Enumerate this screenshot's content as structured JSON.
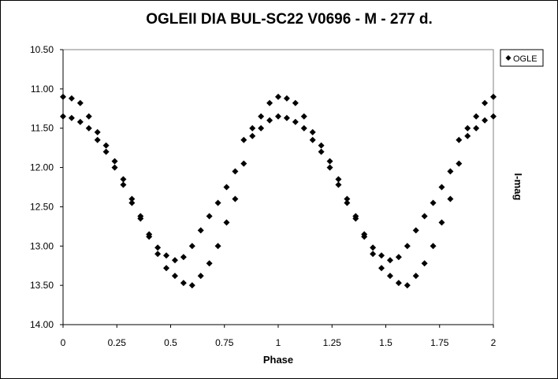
{
  "chart_data": {
    "type": "scatter",
    "title": "OGLEII DIA BUL-SC22 V0696 - M - 277 d.",
    "xlabel": "Phase",
    "ylabel": "I-mag",
    "xlim": [
      0,
      2
    ],
    "ylim": [
      10.5,
      14.0
    ],
    "y_inverted": true,
    "grid": false,
    "legend": "right",
    "xticks": [
      "0",
      "0.25",
      "0.5",
      "0.75",
      "1",
      "1.25",
      "1.5",
      "1.75",
      "2"
    ],
    "yticks": [
      "10.50",
      "11.00",
      "11.50",
      "12.00",
      "12.50",
      "13.00",
      "13.50",
      "14.00"
    ],
    "marker_color": "#000000",
    "series": [
      {
        "name": "OGLE",
        "x": [
          0,
          0.04,
          0.08,
          0.12,
          0.16,
          0.2,
          0.24,
          0.28,
          0.32,
          0.36,
          0.4,
          0.44,
          0.48,
          0.52,
          0.56,
          0.6,
          0.64,
          0.68,
          0.72,
          0.76,
          0.8,
          0.84,
          0.88,
          0.92,
          0.96,
          0,
          0.04,
          0.08,
          0.12,
          0.16,
          0.2,
          0.24,
          0.28,
          0.32,
          0.36,
          0.4,
          0.44,
          0.48,
          0.52,
          0.56,
          0.6,
          0.64,
          0.68,
          0.72,
          0.76,
          0.8,
          0.84,
          0.88,
          0.92,
          0.96,
          1,
          1.04,
          1.08,
          1.12,
          1.16,
          1.2,
          1.24,
          1.28,
          1.32,
          1.36,
          1.4,
          1.44,
          1.48,
          1.52,
          1.56,
          1.6,
          1.64,
          1.68,
          1.72,
          1.76,
          1.8,
          1.84,
          1.88,
          1.92,
          1.96,
          2,
          1,
          1.04,
          1.08,
          1.12,
          1.16,
          1.2,
          1.24,
          1.28,
          1.32,
          1.36,
          1.4,
          1.44,
          1.48,
          1.52,
          1.56,
          1.6,
          1.64,
          1.68,
          1.72,
          1.76,
          1.8,
          1.84,
          1.88,
          1.92,
          1.96,
          2
        ],
        "y": [
          11.1,
          11.12,
          11.18,
          11.35,
          11.55,
          11.72,
          11.92,
          12.15,
          12.4,
          12.62,
          12.85,
          13.02,
          13.12,
          13.18,
          13.14,
          13.0,
          12.8,
          12.62,
          12.45,
          12.25,
          12.05,
          11.65,
          11.5,
          11.35,
          11.18,
          11.35,
          11.37,
          11.42,
          11.5,
          11.65,
          11.8,
          12.0,
          12.22,
          12.45,
          12.65,
          12.88,
          13.1,
          13.28,
          13.38,
          13.47,
          13.5,
          13.38,
          13.22,
          13.0,
          12.7,
          12.4,
          11.95,
          11.6,
          11.5,
          11.4,
          11.1,
          11.12,
          11.18,
          11.35,
          11.55,
          11.72,
          11.92,
          12.15,
          12.4,
          12.62,
          12.85,
          13.02,
          13.12,
          13.18,
          13.14,
          13.0,
          12.8,
          12.62,
          12.45,
          12.25,
          12.05,
          11.65,
          11.5,
          11.35,
          11.18,
          11.1,
          11.35,
          11.37,
          11.42,
          11.5,
          11.65,
          11.8,
          12.0,
          12.22,
          12.45,
          12.65,
          12.88,
          13.1,
          13.28,
          13.38,
          13.47,
          13.5,
          13.38,
          13.22,
          13.0,
          12.7,
          12.4,
          11.95,
          11.6,
          11.5,
          11.4,
          11.35
        ]
      }
    ]
  }
}
